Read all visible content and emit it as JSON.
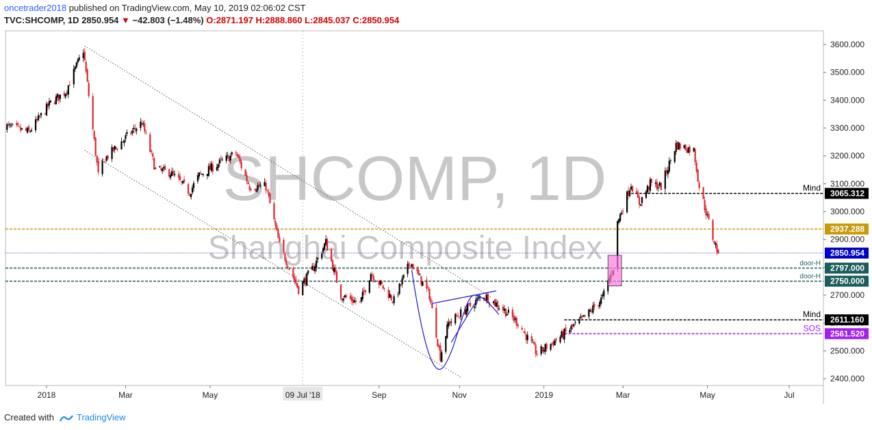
{
  "header": {
    "user": "oncetrader2018",
    "published_text": "published on TradingView.com, May 10, 2019 02:06:02 CST",
    "symbol": "TVC:SHCOMP, 1D",
    "last": "2850.954",
    "change": "−42.803 (−1.48%)",
    "open": "O:2871.197",
    "high": "H:2888.860",
    "low": "L:2845.037",
    "close": "C:2850.954"
  },
  "watermark": {
    "ticker": "SHCOMP, 1D",
    "name": "Shanghai Composite Index"
  },
  "footer": {
    "created_with": "Created with",
    "brand": "TradingView"
  },
  "colors": {
    "up": "#000000",
    "down": "#e0242c",
    "mind": "#000000",
    "gold": "#c89a0a",
    "current": "#0000cc",
    "door": "#1d5c5c",
    "sos": "#a020f0",
    "pattern": "#1a1ad0",
    "box": "#ff7be0"
  },
  "chart_data": {
    "type": "candlestick",
    "ylim": [
      2370,
      3660
    ],
    "y_ticks": [
      "3600.000",
      "3500.000",
      "3400.000",
      "3300.000",
      "3200.000",
      "3100.000",
      "3000.000",
      "2900.000",
      "2800.000",
      "2700.000",
      "2600.000",
      "2500.000",
      "2400.000"
    ],
    "x_ticks": [
      {
        "label": "2018",
        "date": "2018-01-02"
      },
      {
        "label": "Mar",
        "date": "2018-03-01"
      },
      {
        "label": "May",
        "date": "2018-05-02"
      },
      {
        "label": "09 Jul '18",
        "date": "2018-07-09",
        "highlight": true
      },
      {
        "label": "Sep",
        "date": "2018-09-03"
      },
      {
        "label": "Nov",
        "date": "2018-11-01"
      },
      {
        "label": "2019",
        "date": "2019-01-02"
      },
      {
        "label": "Mar",
        "date": "2019-03-01"
      },
      {
        "label": "May",
        "date": "2019-05-02"
      },
      {
        "label": "Jul",
        "date": "2019-07-01"
      }
    ],
    "anchors": [
      [
        "2017-12-01",
        3310
      ],
      [
        "2017-12-20",
        3285
      ],
      [
        "2018-01-05",
        3390
      ],
      [
        "2018-01-16",
        3430
      ],
      [
        "2018-01-29",
        3580
      ],
      [
        "2018-02-09",
        3130
      ],
      [
        "2018-02-14",
        3190
      ],
      [
        "2018-03-02",
        3270
      ],
      [
        "2018-03-13",
        3320
      ],
      [
        "2018-03-23",
        3150
      ],
      [
        "2018-04-03",
        3140
      ],
      [
        "2018-04-17",
        3070
      ],
      [
        "2018-04-24",
        3130
      ],
      [
        "2018-05-21",
        3210
      ],
      [
        "2018-05-31",
        3090
      ],
      [
        "2018-06-12",
        3090
      ],
      [
        "2018-06-22",
        2880
      ],
      [
        "2018-07-06",
        2720
      ],
      [
        "2018-07-17",
        2800
      ],
      [
        "2018-07-26",
        2890
      ],
      [
        "2018-08-06",
        2700
      ],
      [
        "2018-08-20",
        2670
      ],
      [
        "2018-08-28",
        2780
      ],
      [
        "2018-09-14",
        2680
      ],
      [
        "2018-09-26",
        2820
      ],
      [
        "2018-10-10",
        2700
      ],
      [
        "2018-10-18",
        2480
      ],
      [
        "2018-10-24",
        2600
      ],
      [
        "2018-11-06",
        2650
      ],
      [
        "2018-11-19",
        2700
      ],
      [
        "2018-12-03",
        2650
      ],
      [
        "2018-12-14",
        2600
      ],
      [
        "2018-12-28",
        2490
      ],
      [
        "2019-01-04",
        2514
      ],
      [
        "2019-01-14",
        2550
      ],
      [
        "2019-02-01",
        2620
      ],
      [
        "2019-02-14",
        2690
      ],
      [
        "2019-02-22",
        2800
      ],
      [
        "2019-02-25",
        2960
      ],
      [
        "2019-03-07",
        3100
      ],
      [
        "2019-03-13",
        3030
      ],
      [
        "2019-03-21",
        3100
      ],
      [
        "2019-03-29",
        3090
      ],
      [
        "2019-04-09",
        3240
      ],
      [
        "2019-04-22",
        3220
      ],
      [
        "2019-04-26",
        3090
      ],
      [
        "2019-05-06",
        2906
      ],
      [
        "2019-05-10",
        2850.954
      ]
    ],
    "levels": [
      {
        "label": "3065.312",
        "value": 3065.312,
        "type": "mind",
        "note": "Mind"
      },
      {
        "label": "2937.288",
        "value": 2937.288,
        "type": "gold",
        "note": ""
      },
      {
        "label": "2850.954",
        "value": 2850.954,
        "type": "current",
        "note": ""
      },
      {
        "label": "2797.000",
        "value": 2797.0,
        "type": "door",
        "note": "door-H"
      },
      {
        "label": "2750.000",
        "value": 2750.0,
        "type": "door",
        "note": "door-H"
      },
      {
        "label": "2611.160",
        "value": 2611.16,
        "type": "mind",
        "note": "Mind"
      },
      {
        "label": "2561.520",
        "value": 2561.52,
        "type": "sos",
        "note": "SOS"
      }
    ]
  }
}
